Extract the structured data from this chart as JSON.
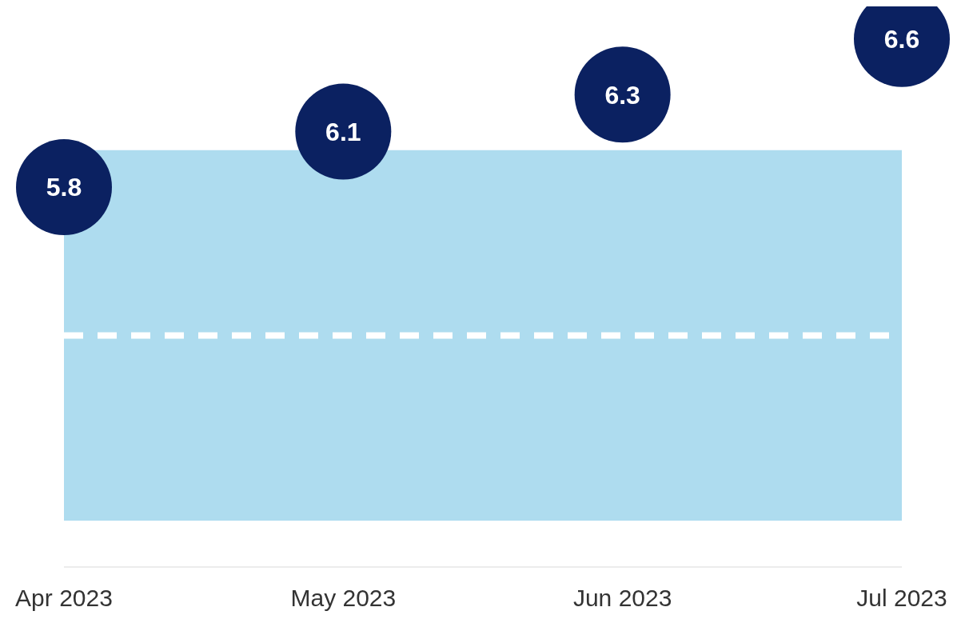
{
  "chart_data": {
    "type": "scatter",
    "categories": [
      "Apr 2023",
      "May 2023",
      "Jun 2023",
      "Jul 2023"
    ],
    "series": [
      {
        "color": "#0b2161",
        "values": [
          5.8,
          6.1,
          6.3,
          6.6
        ]
      }
    ],
    "data_labels": true,
    "tick_labels": "x",
    "marker": "circle",
    "bands": [
      {
        "axis": "y",
        "from": 4,
        "to": 6,
        "color": "#aedcef"
      }
    ],
    "ref_lines": [
      {
        "axis": "y",
        "value": 5,
        "color": "#ffffff",
        "line_style": "dashed"
      }
    ],
    "legend": false
  }
}
